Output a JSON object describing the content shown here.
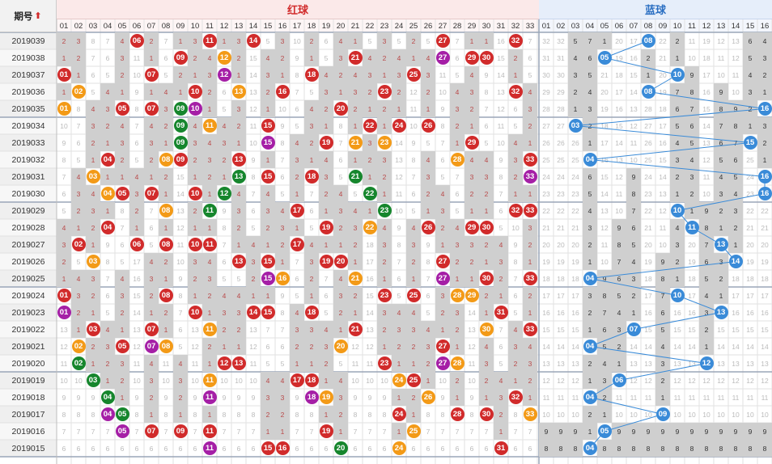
{
  "header": {
    "period_label": "期号",
    "red_label": "红球",
    "blue_label": "蓝球"
  },
  "colors": {
    "red": "#d12b2b",
    "orange": "#f39a17",
    "green": "#16862d",
    "purple": "#a51fa6",
    "blue": "#3a8bd8",
    "link": "#3a8bd8"
  },
  "red_cols": [
    "01",
    "02",
    "03",
    "04",
    "05",
    "06",
    "07",
    "08",
    "09",
    "10",
    "11",
    "12",
    "13",
    "14",
    "15",
    "16",
    "17",
    "18",
    "19",
    "20",
    "21",
    "22",
    "23",
    "24",
    "25",
    "26",
    "27",
    "28",
    "29",
    "30",
    "31",
    "32",
    "33"
  ],
  "blue_cols": [
    "01",
    "02",
    "03",
    "04",
    "05",
    "06",
    "07",
    "08",
    "09",
    "10",
    "11",
    "12",
    "13",
    "14",
    "15",
    "16"
  ],
  "rows": [
    {
      "period": "2019039",
      "red": [
        [
          "06",
          "r"
        ],
        [
          "11",
          "r"
        ],
        [
          "14",
          "r"
        ],
        [
          "27",
          "r"
        ],
        [
          "32",
          "r"
        ]
      ],
      "red_gray": [],
      "blue": [
        "08"
      ]
    },
    {
      "period": "2019038",
      "red": [
        [
          "09",
          "r"
        ],
        [
          "12",
          "o"
        ],
        [
          "21",
          "r"
        ],
        [
          "27",
          "p"
        ],
        [
          "29",
          "r"
        ],
        [
          "30",
          "r"
        ]
      ],
      "red_gray": [],
      "blue": [
        "05"
      ]
    },
    {
      "period": "2019037",
      "red": [
        [
          "01",
          "r"
        ],
        [
          "07",
          "r"
        ],
        [
          "12",
          "p"
        ],
        [
          "18",
          "r"
        ],
        [
          "25",
          "r"
        ]
      ],
      "red_gray": [],
      "blue": [
        "10"
      ]
    },
    {
      "period": "2019036",
      "red": [
        [
          "02",
          "o"
        ],
        [
          "10",
          "r"
        ],
        [
          "13",
          "o"
        ],
        [
          "16",
          "r"
        ],
        [
          "23",
          "r"
        ],
        [
          "32",
          "r"
        ]
      ],
      "red_gray": [],
      "blue": [
        "08"
      ]
    },
    {
      "period": "2019035",
      "red": [
        [
          "01",
          "o"
        ],
        [
          "05",
          "r"
        ],
        [
          "07",
          "r"
        ],
        [
          "09",
          "g"
        ],
        [
          "10",
          "p"
        ],
        [
          "20",
          "r"
        ]
      ],
      "red_gray": [],
      "blue": [
        "16"
      ]
    },
    {
      "period": "2019034",
      "red": [
        [
          "09",
          "g"
        ],
        [
          "11",
          "o"
        ],
        [
          "15",
          "r"
        ],
        [
          "22",
          "r"
        ],
        [
          "24",
          "r"
        ],
        [
          "26",
          "r"
        ]
      ],
      "red_gray": [],
      "blue": [
        "03"
      ]
    },
    {
      "period": "2019033",
      "red": [
        [
          "09",
          "g"
        ],
        [
          "15",
          "p"
        ],
        [
          "19",
          "r"
        ],
        [
          "21",
          "o"
        ],
        [
          "23",
          "o"
        ],
        [
          "29",
          "r"
        ]
      ],
      "red_gray": [],
      "blue": [
        "15"
      ]
    },
    {
      "period": "2019032",
      "red": [
        [
          "04",
          "r"
        ],
        [
          "08",
          "o"
        ],
        [
          "09",
          "r"
        ],
        [
          "13",
          "r"
        ],
        [
          "28",
          "o"
        ],
        [
          "33",
          "r"
        ]
      ],
      "red_gray": [],
      "blue": [
        "04"
      ]
    },
    {
      "period": "2019031",
      "red": [
        [
          "03",
          "o"
        ],
        [
          "13",
          "g"
        ],
        [
          "15",
          "r"
        ],
        [
          "18",
          "r"
        ],
        [
          "21",
          "g"
        ],
        [
          "33",
          "p"
        ]
      ],
      "red_gray": [],
      "blue": [
        "16"
      ]
    },
    {
      "period": "2019030",
      "red": [
        [
          "04",
          "o"
        ],
        [
          "05",
          "r"
        ],
        [
          "07",
          "r"
        ],
        [
          "10",
          "r"
        ],
        [
          "12",
          "g"
        ],
        [
          "22",
          "g"
        ]
      ],
      "red_gray": [],
      "blue": [
        "16"
      ]
    },
    {
      "period": "2019029",
      "red": [
        [
          "08",
          "o"
        ],
        [
          "11",
          "g"
        ],
        [
          "17",
          "r"
        ],
        [
          "23",
          "g"
        ],
        [
          "32",
          "r"
        ],
        [
          "33",
          "r"
        ]
      ],
      "red_gray": [],
      "blue": [
        "10"
      ]
    },
    {
      "period": "2019028",
      "red": [
        [
          "04",
          "r"
        ],
        [
          "19",
          "r"
        ],
        [
          "22",
          "o"
        ],
        [
          "26",
          "r"
        ],
        [
          "29",
          "r"
        ],
        [
          "30",
          "r"
        ]
      ],
      "red_gray": [],
      "blue": [
        "11"
      ]
    },
    {
      "period": "2019027",
      "red": [
        [
          "02",
          "r"
        ],
        [
          "06",
          "r"
        ],
        [
          "08",
          "r"
        ],
        [
          "10",
          "r"
        ],
        [
          "11",
          "r"
        ],
        [
          "17",
          "r"
        ]
      ],
      "red_gray": [],
      "blue": [
        "13"
      ]
    },
    {
      "period": "2019026",
      "red": [
        [
          "03",
          "o"
        ],
        [
          "13",
          "r"
        ],
        [
          "15",
          "r"
        ],
        [
          "19",
          "r"
        ],
        [
          "20",
          "r"
        ],
        [
          "27",
          "r"
        ]
      ],
      "red_gray": [],
      "blue": [
        "14"
      ]
    },
    {
      "period": "2019025",
      "red": [
        [
          "15",
          "p"
        ],
        [
          "16",
          "o"
        ],
        [
          "21",
          "o"
        ],
        [
          "27",
          "p"
        ],
        [
          "30",
          "r"
        ],
        [
          "33",
          "r"
        ]
      ],
      "red_gray": [],
      "blue": [
        "04"
      ]
    },
    {
      "period": "2019024",
      "red": [
        [
          "01",
          "r"
        ],
        [
          "08",
          "r"
        ],
        [
          "23",
          "r"
        ],
        [
          "25",
          "r"
        ],
        [
          "28",
          "o"
        ],
        [
          "29",
          "o"
        ]
      ],
      "red_gray": [],
      "blue": [
        "10"
      ]
    },
    {
      "period": "2019023",
      "red": [
        [
          "01",
          "p"
        ],
        [
          "10",
          "r"
        ],
        [
          "14",
          "r"
        ],
        [
          "15",
          "r"
        ],
        [
          "18",
          "r"
        ],
        [
          "31",
          "r"
        ]
      ],
      "red_gray": [],
      "blue": [
        "13"
      ]
    },
    {
      "period": "2019022",
      "red": [
        [
          "03",
          "r"
        ],
        [
          "07",
          "r"
        ],
        [
          "11",
          "o"
        ],
        [
          "21",
          "r"
        ],
        [
          "30",
          "o"
        ],
        [
          "33",
          "r"
        ]
      ],
      "red_gray": [],
      "blue": [
        "07"
      ]
    },
    {
      "period": "2019021",
      "red": [
        [
          "02",
          "o"
        ],
        [
          "05",
          "r"
        ],
        [
          "07",
          "p"
        ],
        [
          "08",
          "o"
        ],
        [
          "20",
          "o"
        ],
        [
          "27",
          "r"
        ]
      ],
      "red_gray": [],
      "blue": [
        "04"
      ]
    },
    {
      "period": "2019020",
      "red": [
        [
          "02",
          "g"
        ],
        [
          "12",
          "r"
        ],
        [
          "13",
          "r"
        ],
        [
          "23",
          "r"
        ],
        [
          "27",
          "p"
        ],
        [
          "28",
          "o"
        ]
      ],
      "red_gray": [],
      "blue": [
        "12"
      ]
    },
    {
      "period": "2019019",
      "red": [
        [
          "03",
          "g"
        ],
        [
          "11",
          "o"
        ],
        [
          "17",
          "r"
        ],
        [
          "18",
          "r"
        ],
        [
          "24",
          "o"
        ],
        [
          "25",
          "r"
        ]
      ],
      "red_gray": [],
      "blue": [
        "06"
      ]
    },
    {
      "period": "2019018",
      "red": [
        [
          "04",
          "g"
        ],
        [
          "11",
          "p"
        ],
        [
          "18",
          "p"
        ],
        [
          "19",
          "o"
        ],
        [
          "26",
          "o"
        ],
        [
          "32",
          "r"
        ]
      ],
      "red_gray": [],
      "blue": [
        "04"
      ]
    },
    {
      "period": "2019017",
      "red": [
        [
          "04",
          "p"
        ],
        [
          "05",
          "g"
        ],
        [
          "24",
          "r"
        ],
        [
          "28",
          "r"
        ],
        [
          "30",
          "r"
        ],
        [
          "33",
          "o"
        ]
      ],
      "red_gray": [],
      "blue": [
        "09"
      ]
    },
    {
      "period": "2019016",
      "red": [
        [
          "05",
          "p"
        ],
        [
          "07",
          "r"
        ],
        [
          "09",
          "r"
        ],
        [
          "11",
          "r"
        ],
        [
          "19",
          "r"
        ],
        [
          "25",
          "o"
        ]
      ],
      "red_gray": [],
      "blue": [
        "05"
      ]
    },
    {
      "period": "2019015",
      "red": [
        [
          "11",
          "p"
        ],
        [
          "15",
          "r"
        ],
        [
          "16",
          "r"
        ],
        [
          "20",
          "g"
        ],
        [
          "24",
          "o"
        ],
        [
          "31",
          "r"
        ]
      ],
      "red_gray": [],
      "blue": [
        "04"
      ]
    }
  ]
}
